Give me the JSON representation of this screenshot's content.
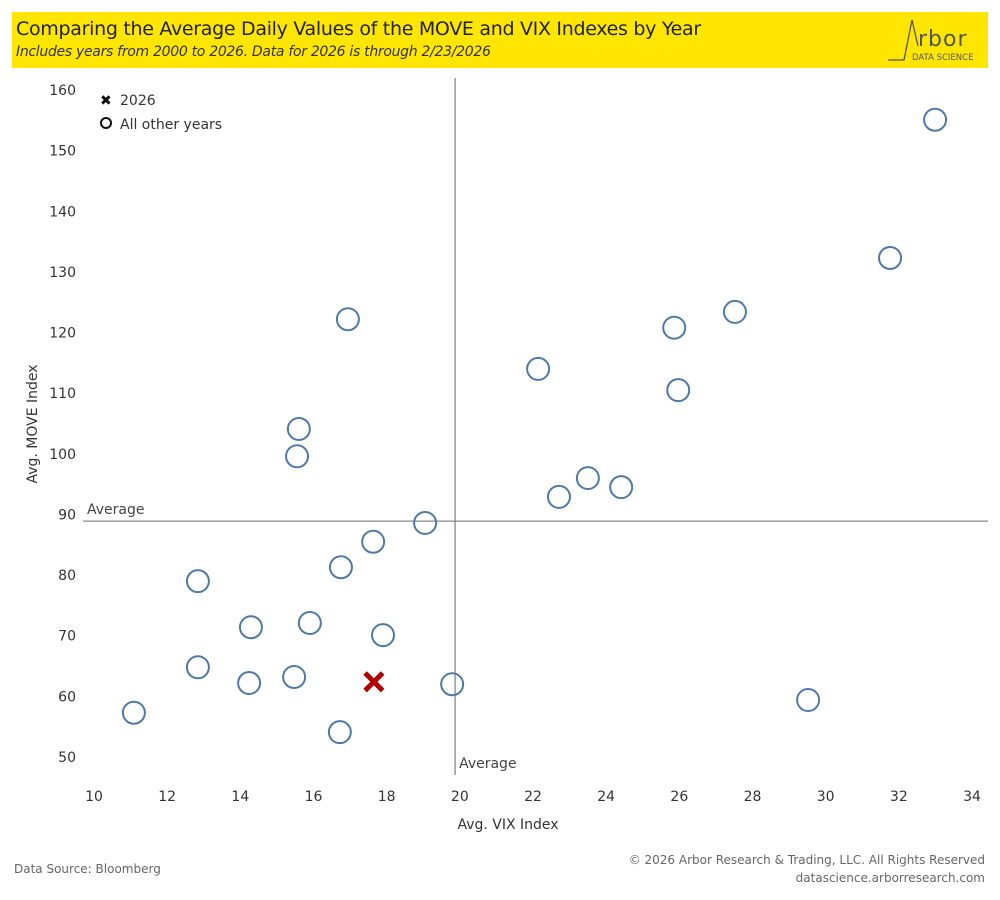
{
  "header": {
    "title": "Comparing the Average Daily Values of the MOVE and VIX Indexes by Year",
    "subtitle": "Includes years from 2000 to 2026. Data for 2026 is through 2/23/2026",
    "logo_text": "Arbor",
    "logo_subtext": "DATA SCIENCE",
    "banner_color": "#ffe600"
  },
  "footer": {
    "source": "Data Source: Bloomberg",
    "copyright": "© 2026 Arbor Research & Trading, LLC. All Rights Reserved",
    "website": "datascience.arborresearch.com"
  },
  "chart_data": {
    "type": "scatter",
    "xlabel": "Avg. VIX Index",
    "ylabel": "Avg. MOVE Index",
    "xlim": [
      10,
      34
    ],
    "ylim": [
      50,
      160
    ],
    "xticks": [
      10,
      12,
      14,
      16,
      18,
      20,
      22,
      24,
      26,
      28,
      30,
      32,
      34
    ],
    "yticks": [
      50,
      60,
      70,
      80,
      90,
      100,
      110,
      120,
      130,
      140,
      150,
      160
    ],
    "grid": false,
    "legend_position": "top-left",
    "legend": [
      {
        "label": "2026",
        "marker": "x"
      },
      {
        "label": "All other years",
        "marker": "circle"
      }
    ],
    "reference_lines": {
      "vertical": {
        "value": 19.87,
        "label": "Average"
      },
      "horizontal": {
        "value": 88.9,
        "label": "Average"
      }
    },
    "series": [
      {
        "name": "All other years",
        "marker": "circle",
        "color": "#4e79a7",
        "points": [
          [
            11.09,
            57.3
          ],
          [
            12.84,
            79.0
          ],
          [
            12.84,
            64.8
          ],
          [
            14.29,
            71.4
          ],
          [
            14.24,
            62.2
          ],
          [
            15.47,
            63.2
          ],
          [
            15.55,
            99.6
          ],
          [
            15.6,
            104.1
          ],
          [
            15.9,
            72.1
          ],
          [
            16.72,
            54.1
          ],
          [
            16.75,
            81.3
          ],
          [
            16.94,
            122.2
          ],
          [
            17.63,
            85.5
          ],
          [
            17.9,
            70.1
          ],
          [
            19.05,
            88.6
          ],
          [
            19.79,
            62.0
          ],
          [
            22.14,
            114.0
          ],
          [
            22.71,
            92.9
          ],
          [
            23.5,
            96.0
          ],
          [
            24.41,
            94.5
          ],
          [
            25.86,
            120.8
          ],
          [
            25.97,
            110.5
          ],
          [
            27.52,
            123.4
          ],
          [
            29.52,
            59.4
          ],
          [
            31.76,
            132.3
          ],
          [
            32.99,
            155.1
          ]
        ]
      },
      {
        "name": "2026",
        "marker": "x",
        "color": "#b00000",
        "points": [
          [
            17.65,
            62.4
          ]
        ]
      }
    ]
  }
}
